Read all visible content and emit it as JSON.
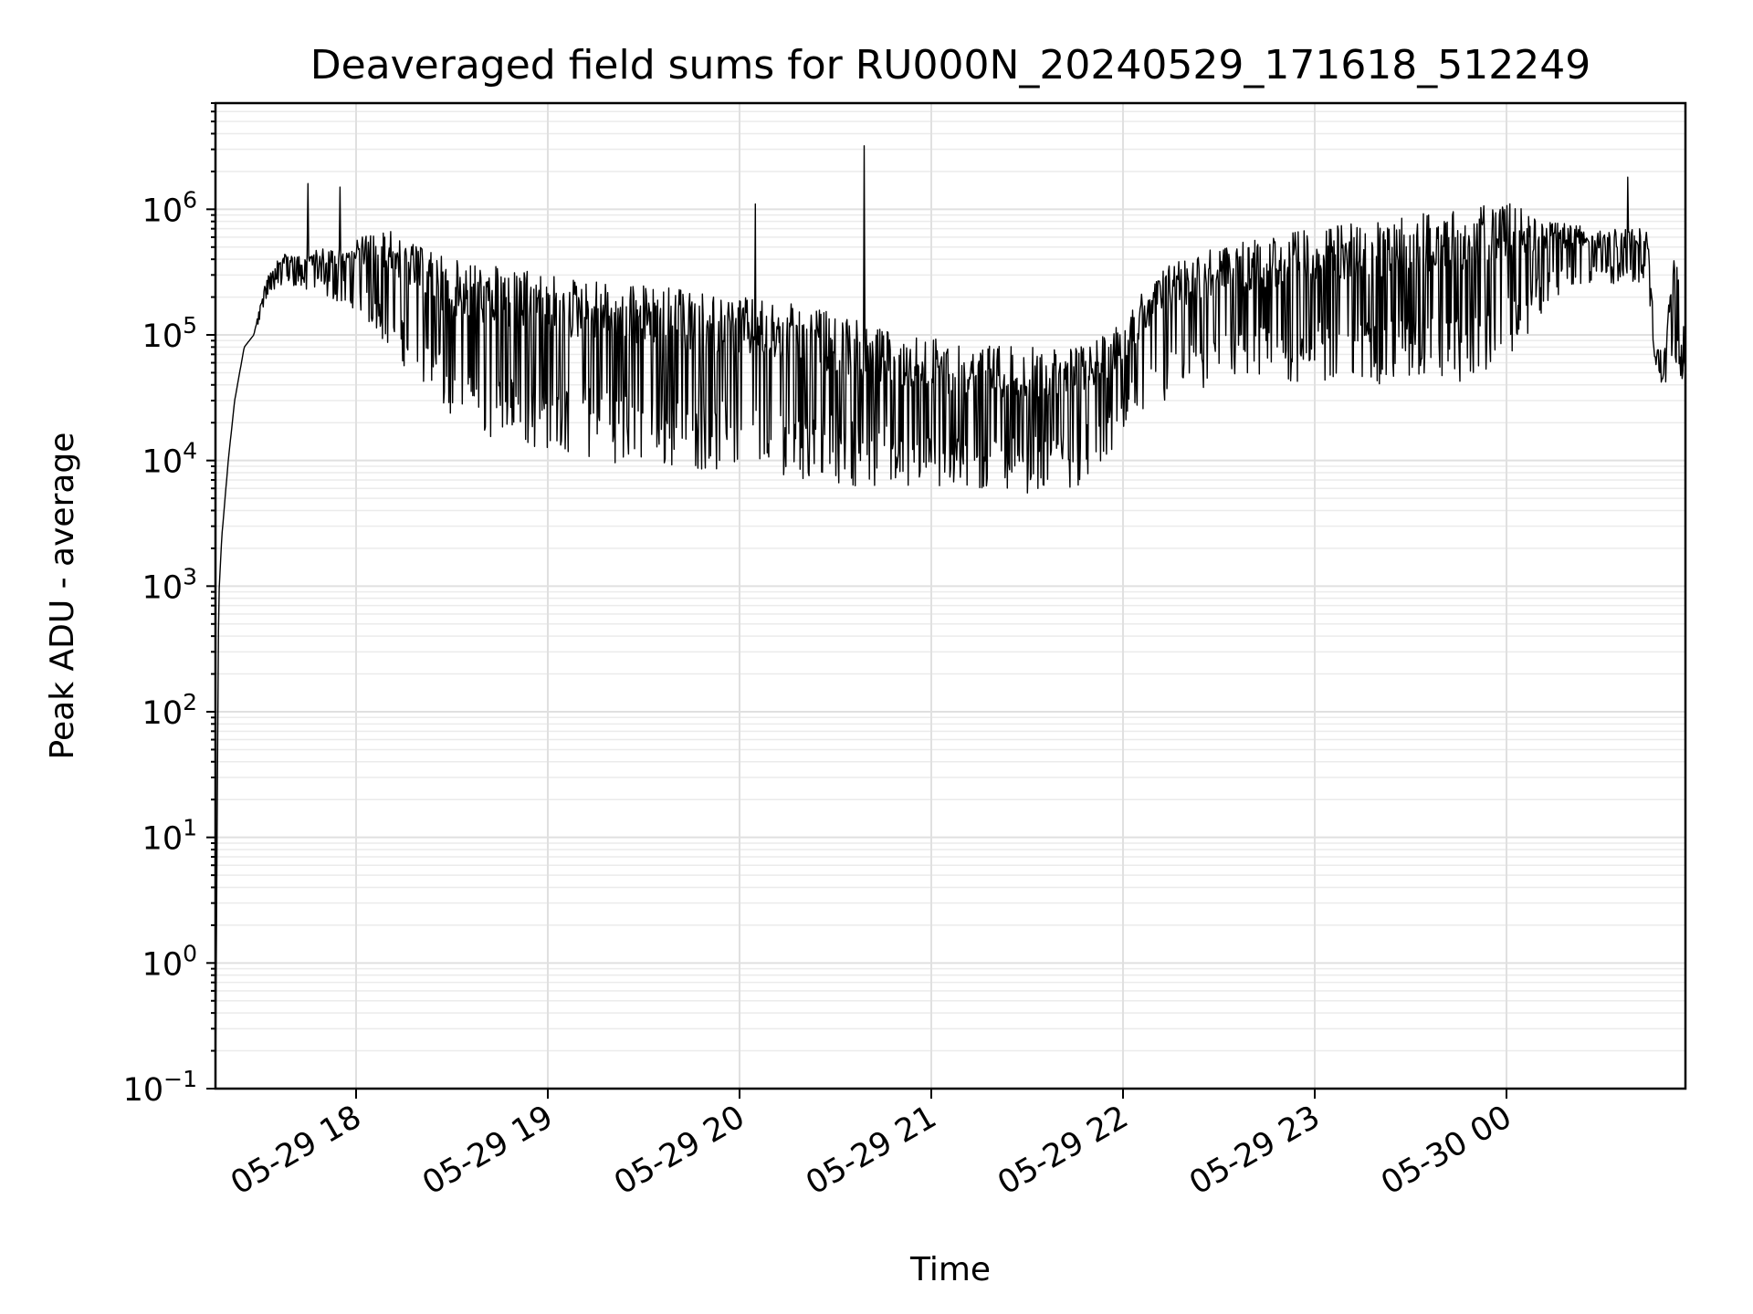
{
  "chart_data": {
    "type": "line",
    "title": "Deaveraged field sums for RU000N_20240529_171618_512249",
    "xlabel": "Time",
    "ylabel": "Peak ADU - average",
    "yscale": "log",
    "ylim": [
      0.1,
      7000000
    ],
    "xlim": [
      "2024-05-29 17:16",
      "2024-05-30 00:56"
    ],
    "grid": true,
    "x_ticks": [
      {
        "value": "2024-05-29 18:00",
        "label": "05-29 18"
      },
      {
        "value": "2024-05-29 19:00",
        "label": "05-29 19"
      },
      {
        "value": "2024-05-29 20:00",
        "label": "05-29 20"
      },
      {
        "value": "2024-05-29 21:00",
        "label": "05-29 21"
      },
      {
        "value": "2024-05-29 22:00",
        "label": "05-29 22"
      },
      {
        "value": "2024-05-29 23:00",
        "label": "05-29 23"
      },
      {
        "value": "2024-05-30 00:00",
        "label": "05-30 00"
      }
    ],
    "y_ticks": [
      {
        "value": 0.1,
        "base": "10",
        "exp": "−1"
      },
      {
        "value": 1,
        "base": "10",
        "exp": "0"
      },
      {
        "value": 10,
        "base": "10",
        "exp": "1"
      },
      {
        "value": 100,
        "base": "10",
        "exp": "2"
      },
      {
        "value": 1000,
        "base": "10",
        "exp": "3"
      },
      {
        "value": 10000,
        "base": "10",
        "exp": "4"
      },
      {
        "value": 100000,
        "base": "10",
        "exp": "5"
      },
      {
        "value": 1000000,
        "base": "10",
        "exp": "6"
      }
    ],
    "series": [
      {
        "color": "#000000",
        "envelope": {
          "x": [
            "2024-05-29 17:16",
            "2024-05-29 17:17",
            "2024-05-29 17:18",
            "2024-05-29 17:20",
            "2024-05-29 17:22",
            "2024-05-29 17:25",
            "2024-05-29 17:28",
            "2024-05-29 17:32",
            "2024-05-29 17:36",
            "2024-05-29 17:40",
            "2024-05-29 17:45",
            "2024-05-29 17:50",
            "2024-05-29 17:55",
            "2024-05-29 18:00",
            "2024-05-29 18:10",
            "2024-05-29 18:20",
            "2024-05-29 18:30",
            "2024-05-29 18:45",
            "2024-05-29 19:00",
            "2024-05-29 19:15",
            "2024-05-29 19:30",
            "2024-05-29 19:45",
            "2024-05-29 20:00",
            "2024-05-29 20:15",
            "2024-05-29 20:30",
            "2024-05-29 20:45",
            "2024-05-29 21:00",
            "2024-05-29 21:15",
            "2024-05-29 21:30",
            "2024-05-29 21:45",
            "2024-05-29 21:55",
            "2024-05-29 22:05",
            "2024-05-29 22:15",
            "2024-05-29 22:30",
            "2024-05-29 22:45",
            "2024-05-29 23:00",
            "2024-05-29 23:15",
            "2024-05-29 23:30",
            "2024-05-29 23:45",
            "2024-05-30 00:00",
            "2024-05-30 00:15",
            "2024-05-30 00:30",
            "2024-05-30 00:44",
            "2024-05-30 00:47",
            "2024-05-30 00:50",
            "2024-05-30 00:52",
            "2024-05-30 00:54",
            "2024-05-30 00:56"
          ],
          "high": [
            0.1,
            800,
            2500,
            10000,
            30000,
            80000,
            100000,
            300000,
            450000,
            450000,
            450000,
            500000,
            500000,
            600000,
            700000,
            500000,
            400000,
            350000,
            300000,
            280000,
            260000,
            220000,
            200000,
            180000,
            150000,
            110000,
            95000,
            85000,
            80000,
            80000,
            100000,
            200000,
            400000,
            500000,
            600000,
            700000,
            800000,
            900000,
            1000000,
            1200000,
            800000,
            700000,
            700000,
            80000,
            80000,
            700000,
            300000,
            100000
          ],
          "low": [
            0.1,
            800,
            2500,
            10000,
            30000,
            80000,
            100000,
            180000,
            250000,
            250000,
            220000,
            200000,
            180000,
            160000,
            80000,
            40000,
            20000,
            14000,
            12000,
            10000,
            9000,
            8500,
            8000,
            7500,
            6500,
            6000,
            5500,
            5500,
            5500,
            6000,
            10000,
            20000,
            30000,
            35000,
            40000,
            40000,
            40000,
            40000,
            40000,
            60000,
            200000,
            250000,
            250000,
            40000,
            40000,
            60000,
            50000,
            40000
          ]
        },
        "spikes": [
          {
            "x": "2024-05-29 17:45",
            "y": 1600000
          },
          {
            "x": "2024-05-29 17:55",
            "y": 1500000
          },
          {
            "x": "2024-05-29 20:05",
            "y": 1100000
          },
          {
            "x": "2024-05-29 20:39",
            "y": 3200000
          },
          {
            "x": "2024-05-30 00:38",
            "y": 1800000
          }
        ]
      }
    ]
  }
}
